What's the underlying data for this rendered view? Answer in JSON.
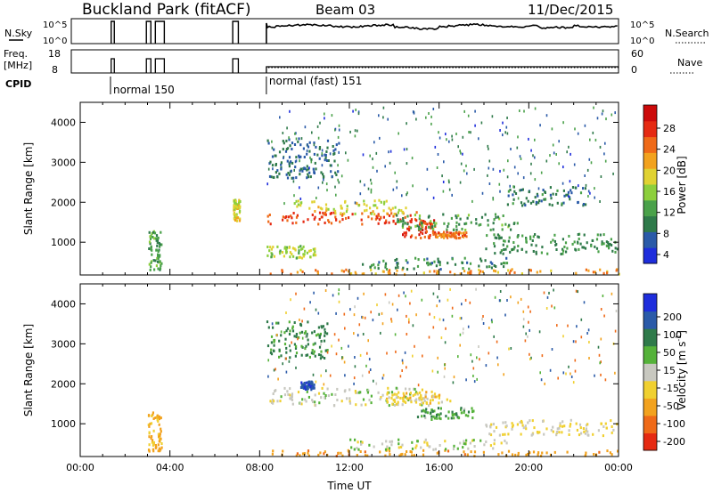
{
  "header": {
    "station": "Buckland Park (fitACF)",
    "beam": "Beam 03",
    "date": "11/Dec/2015"
  },
  "status_panels": {
    "nsky_label": "N.Sky",
    "nsky_ticks": [
      "10^5",
      "10^0"
    ],
    "nsearch_label": "N.Search",
    "nsearch_ticks": [
      "10^5",
      "10^0"
    ],
    "freq_label": "Freq.",
    "freq_unit": "[MHz]",
    "freq_ticks": [
      "18",
      "8"
    ],
    "nave_label": "Nave",
    "nave_ticks": [
      "60",
      "0"
    ],
    "cpid_label": "CPID",
    "cpid_segments": [
      {
        "label": "normal 150",
        "start_hour": 1.35
      },
      {
        "label": "normal (fast) 151",
        "start_hour": 8.3
      }
    ]
  },
  "colors": {
    "power_scale": [
      "#1e2ddc",
      "#2a5aa8",
      "#2f7a4a",
      "#4aa14a",
      "#8ccf3c",
      "#e0d232",
      "#f2a21e",
      "#ef6a18",
      "#e52a12",
      "#cc0a0a"
    ],
    "velocity_scale": [
      "#1e2ddc",
      "#2a5aa8",
      "#2f7a4a",
      "#55b23a",
      "#c8c8c0",
      "#f0d030",
      "#f2a21e",
      "#ef6a18",
      "#e52a12"
    ]
  },
  "chart_data": [
    {
      "type": "heatmap",
      "name": "power",
      "ylabel": "Slant Range [km]",
      "xlabel": "",
      "xlim": [
        0,
        24
      ],
      "ylim": [
        180,
        4500
      ],
      "xticks": [
        "00:00",
        "04:00",
        "08:00",
        "12:00",
        "16:00",
        "20:00",
        "00:00"
      ],
      "yticks": [
        "1000",
        "2000",
        "3000",
        "4000"
      ],
      "colorbar": {
        "label": "Power [dB]",
        "ticks": [
          "28",
          "24",
          "20",
          "16",
          "12",
          "8",
          "4"
        ]
      },
      "regions": [
        {
          "t": [
            8.3,
            15.6
          ],
          "r": [
            1450,
            1750
          ],
          "value": 26
        },
        {
          "t": [
            9.5,
            14.5
          ],
          "r": [
            1700,
            2050
          ],
          "value": 18
        },
        {
          "t": [
            14.2,
            15.8
          ],
          "r": [
            1100,
            1550
          ],
          "value": 27
        },
        {
          "t": [
            15.8,
            17.2
          ],
          "r": [
            1100,
            1250
          ],
          "value": 24
        },
        {
          "t": [
            14.0,
            19.5
          ],
          "r": [
            1300,
            1700
          ],
          "value": 12
        },
        {
          "t": [
            8.3,
            24.0
          ],
          "r": [
            190,
            320
          ],
          "value": 22
        },
        {
          "t": [
            12.5,
            19.0
          ],
          "r": [
            320,
            600
          ],
          "value": 10
        },
        {
          "t": [
            18.0,
            24.0
          ],
          "r": [
            700,
            1200
          ],
          "value": 11
        },
        {
          "t": [
            19.0,
            22.5
          ],
          "r": [
            1900,
            2400
          ],
          "value": 9
        },
        {
          "t": [
            8.3,
            10.5
          ],
          "r": [
            600,
            900
          ],
          "value": 16
        },
        {
          "t": [
            8.3,
            11.5
          ],
          "r": [
            2600,
            3600
          ],
          "value": 8
        },
        {
          "t": [
            3.0,
            3.6
          ],
          "r": [
            300,
            1300
          ],
          "value": 12
        },
        {
          "t": [
            6.8,
            7.1
          ],
          "r": [
            1500,
            2100
          ],
          "value": 18
        }
      ]
    },
    {
      "type": "heatmap",
      "name": "velocity",
      "ylabel": "Slant Range [km]",
      "xlabel": "Time UT",
      "xlim": [
        0,
        24
      ],
      "ylim": [
        180,
        4500
      ],
      "xticks": [
        "00:00",
        "04:00",
        "08:00",
        "12:00",
        "16:00",
        "20:00",
        "00:00"
      ],
      "yticks": [
        "1000",
        "2000",
        "3000",
        "4000"
      ],
      "colorbar": {
        "label": "Velocity [m s^-1]",
        "ticks": [
          "200",
          "100",
          "50",
          "15",
          "-15",
          "-50",
          "-100",
          "-200"
        ]
      },
      "regions": [
        {
          "t": [
            8.3,
            15.5
          ],
          "r": [
            1450,
            1900
          ],
          "value": 0
        },
        {
          "t": [
            15.0,
            17.5
          ],
          "r": [
            1100,
            1400
          ],
          "value": 40
        },
        {
          "t": [
            9.8,
            10.4
          ],
          "r": [
            1850,
            2050
          ],
          "value": 180
        },
        {
          "t": [
            13.5,
            16.5
          ],
          "r": [
            1500,
            1800
          ],
          "value": -40
        },
        {
          "t": [
            8.3,
            24.0
          ],
          "r": [
            190,
            330
          ],
          "value": -80
        },
        {
          "t": [
            18.0,
            24.0
          ],
          "r": [
            700,
            1100
          ],
          "value": -20
        },
        {
          "t": [
            12.0,
            19.0
          ],
          "r": [
            350,
            600
          ],
          "value": 5
        },
        {
          "t": [
            8.3,
            11.0
          ],
          "r": [
            2600,
            3600
          ],
          "value": 60
        },
        {
          "t": [
            3.0,
            3.6
          ],
          "r": [
            300,
            1300
          ],
          "value": -60
        }
      ]
    }
  ]
}
